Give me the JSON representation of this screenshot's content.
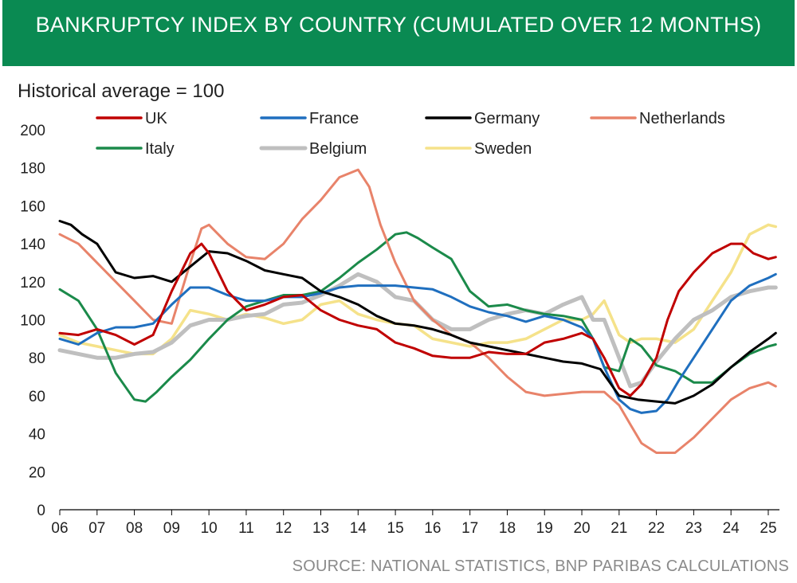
{
  "chart_data": {
    "type": "line",
    "title": "BANKRUPTCY INDEX BY COUNTRY (CUMULATED OVER 12 MONTHS)",
    "ylabel": "Historical average = 100",
    "xlabel": "",
    "ylim": [
      0,
      200
    ],
    "yticks": [
      0,
      20,
      40,
      60,
      80,
      100,
      120,
      140,
      160,
      180,
      200
    ],
    "xlim": [
      2006,
      2025.3
    ],
    "xtick_values": [
      2006,
      2007,
      2008,
      2009,
      2010,
      2011,
      2012,
      2013,
      2014,
      2015,
      2016,
      2017,
      2018,
      2019,
      2020,
      2021,
      2022,
      2023,
      2024,
      2025
    ],
    "xtick_labels": [
      "06",
      "07",
      "08",
      "09",
      "10",
      "11",
      "12",
      "13",
      "14",
      "15",
      "16",
      "17",
      "18",
      "19",
      "20",
      "21",
      "22",
      "23",
      "24",
      "25"
    ],
    "grid": false,
    "legend_position": "top",
    "source": "SOURCE: NATIONAL STATISTICS, BNP PARIBAS CALCULATIONS",
    "series": [
      {
        "name": "UK",
        "color": "#c00000",
        "x": [
          2006.0,
          2006.5,
          2007.0,
          2007.5,
          2008.0,
          2008.5,
          2009.0,
          2009.5,
          2009.8,
          2010.0,
          2010.5,
          2011.0,
          2011.5,
          2012.0,
          2012.5,
          2013.0,
          2013.5,
          2014.0,
          2014.5,
          2015.0,
          2015.5,
          2016.0,
          2016.5,
          2017.0,
          2017.5,
          2018.0,
          2018.5,
          2019.0,
          2019.5,
          2020.0,
          2020.3,
          2020.6,
          2021.0,
          2021.3,
          2021.6,
          2022.0,
          2022.3,
          2022.6,
          2023.0,
          2023.5,
          2024.0,
          2024.3,
          2024.6,
          2025.0,
          2025.2
        ],
        "values": [
          93,
          92,
          95,
          92,
          87,
          92,
          115,
          135,
          140,
          135,
          115,
          105,
          108,
          112,
          113,
          105,
          100,
          97,
          95,
          88,
          85,
          81,
          80,
          80,
          83,
          82,
          82,
          88,
          90,
          93,
          90,
          80,
          64,
          60,
          66,
          80,
          100,
          115,
          125,
          135,
          140,
          140,
          135,
          132,
          133
        ]
      },
      {
        "name": "France",
        "color": "#1f6fbf",
        "x": [
          2006.0,
          2006.5,
          2007.0,
          2007.5,
          2008.0,
          2008.5,
          2009.0,
          2009.5,
          2010.0,
          2010.5,
          2011.0,
          2011.5,
          2012.0,
          2012.5,
          2013.0,
          2013.5,
          2014.0,
          2014.5,
          2015.0,
          2015.5,
          2016.0,
          2016.5,
          2017.0,
          2017.5,
          2018.0,
          2018.5,
          2019.0,
          2019.5,
          2020.0,
          2020.3,
          2020.6,
          2021.0,
          2021.3,
          2021.6,
          2022.0,
          2022.3,
          2022.6,
          2023.0,
          2023.5,
          2024.0,
          2024.5,
          2025.0,
          2025.2
        ],
        "values": [
          90,
          87,
          93,
          96,
          96,
          98,
          108,
          117,
          117,
          113,
          110,
          110,
          112,
          112,
          114,
          117,
          118,
          118,
          118,
          117,
          116,
          112,
          107,
          104,
          102,
          99,
          102,
          100,
          96,
          90,
          75,
          58,
          53,
          51,
          52,
          58,
          68,
          80,
          95,
          110,
          118,
          122,
          124
        ]
      },
      {
        "name": "Germany",
        "color": "#000000",
        "x": [
          2006.0,
          2006.3,
          2006.6,
          2007.0,
          2007.5,
          2008.0,
          2008.5,
          2009.0,
          2009.5,
          2010.0,
          2010.5,
          2011.0,
          2011.5,
          2012.0,
          2012.5,
          2013.0,
          2013.5,
          2014.0,
          2014.5,
          2015.0,
          2015.5,
          2016.0,
          2016.5,
          2017.0,
          2017.5,
          2018.0,
          2018.5,
          2019.0,
          2019.5,
          2020.0,
          2020.5,
          2021.0,
          2021.5,
          2022.0,
          2022.5,
          2023.0,
          2023.5,
          2024.0,
          2024.5,
          2025.0,
          2025.2
        ],
        "values": [
          152,
          150,
          145,
          140,
          125,
          122,
          123,
          120,
          128,
          136,
          135,
          131,
          126,
          124,
          122,
          115,
          112,
          108,
          102,
          98,
          97,
          95,
          92,
          88,
          86,
          84,
          82,
          80,
          78,
          77,
          74,
          60,
          58,
          57,
          56,
          60,
          66,
          75,
          83,
          90,
          93
        ]
      },
      {
        "name": "Netherlands",
        "color": "#e8836a",
        "x": [
          2006.0,
          2006.5,
          2007.0,
          2007.5,
          2008.0,
          2008.5,
          2009.0,
          2009.5,
          2009.8,
          2010.0,
          2010.5,
          2011.0,
          2011.5,
          2012.0,
          2012.5,
          2013.0,
          2013.5,
          2014.0,
          2014.3,
          2014.6,
          2015.0,
          2015.5,
          2016.0,
          2016.5,
          2017.0,
          2017.5,
          2018.0,
          2018.5,
          2019.0,
          2019.5,
          2020.0,
          2020.3,
          2020.6,
          2021.0,
          2021.3,
          2021.6,
          2022.0,
          2022.5,
          2023.0,
          2023.5,
          2024.0,
          2024.5,
          2025.0,
          2025.2
        ],
        "values": [
          145,
          140,
          130,
          120,
          110,
          100,
          98,
          130,
          148,
          150,
          140,
          133,
          132,
          140,
          153,
          163,
          175,
          179,
          170,
          150,
          130,
          110,
          100,
          92,
          88,
          80,
          70,
          62,
          60,
          61,
          62,
          62,
          62,
          55,
          45,
          35,
          30,
          30,
          38,
          48,
          58,
          64,
          67,
          65
        ]
      },
      {
        "name": "Italy",
        "color": "#1b8a4a",
        "x": [
          2006.0,
          2006.5,
          2007.0,
          2007.5,
          2008.0,
          2008.3,
          2008.6,
          2009.0,
          2009.5,
          2010.0,
          2010.5,
          2011.0,
          2011.5,
          2012.0,
          2012.5,
          2013.0,
          2013.5,
          2014.0,
          2014.5,
          2015.0,
          2015.3,
          2015.6,
          2016.0,
          2016.5,
          2017.0,
          2017.5,
          2018.0,
          2018.5,
          2019.0,
          2019.5,
          2020.0,
          2020.3,
          2020.6,
          2021.0,
          2021.3,
          2021.6,
          2022.0,
          2022.5,
          2023.0,
          2023.5,
          2024.0,
          2024.5,
          2025.0,
          2025.2
        ],
        "values": [
          116,
          110,
          95,
          72,
          58,
          57,
          62,
          70,
          79,
          90,
          100,
          107,
          110,
          113,
          113,
          115,
          122,
          130,
          137,
          145,
          146,
          143,
          138,
          132,
          115,
          107,
          108,
          105,
          103,
          102,
          100,
          90,
          75,
          73,
          90,
          86,
          76,
          73,
          67,
          67,
          75,
          82,
          86,
          87
        ]
      },
      {
        "name": "Belgium",
        "color": "#bfbfbf",
        "x": [
          2006.0,
          2006.5,
          2007.0,
          2007.5,
          2008.0,
          2008.5,
          2009.0,
          2009.5,
          2010.0,
          2010.5,
          2011.0,
          2011.5,
          2012.0,
          2012.5,
          2013.0,
          2013.5,
          2014.0,
          2014.5,
          2015.0,
          2015.5,
          2016.0,
          2016.5,
          2017.0,
          2017.5,
          2018.0,
          2018.5,
          2019.0,
          2019.5,
          2020.0,
          2020.3,
          2020.6,
          2021.0,
          2021.3,
          2021.6,
          2022.0,
          2022.5,
          2023.0,
          2023.5,
          2024.0,
          2024.5,
          2025.0,
          2025.2
        ],
        "values": [
          84,
          82,
          80,
          80,
          82,
          83,
          88,
          97,
          100,
          100,
          102,
          103,
          108,
          109,
          113,
          118,
          124,
          120,
          112,
          110,
          100,
          95,
          95,
          100,
          103,
          105,
          103,
          108,
          112,
          100,
          100,
          80,
          65,
          67,
          78,
          90,
          100,
          105,
          112,
          115,
          117,
          117
        ]
      },
      {
        "name": "Sweden",
        "color": "#f5e28a",
        "x": [
          2006.0,
          2006.5,
          2007.0,
          2007.5,
          2008.0,
          2008.5,
          2009.0,
          2009.5,
          2010.0,
          2010.5,
          2011.0,
          2011.5,
          2012.0,
          2012.5,
          2013.0,
          2013.5,
          2014.0,
          2014.5,
          2015.0,
          2015.5,
          2016.0,
          2016.5,
          2017.0,
          2017.5,
          2018.0,
          2018.5,
          2019.0,
          2019.5,
          2020.0,
          2020.3,
          2020.6,
          2021.0,
          2021.3,
          2021.6,
          2022.0,
          2022.5,
          2023.0,
          2023.5,
          2024.0,
          2024.5,
          2025.0,
          2025.2
        ],
        "values": [
          92,
          88,
          86,
          84,
          82,
          82,
          90,
          105,
          103,
          100,
          103,
          101,
          98,
          100,
          108,
          110,
          103,
          100,
          98,
          97,
          90,
          88,
          86,
          88,
          88,
          90,
          95,
          100,
          100,
          103,
          110,
          92,
          88,
          90,
          90,
          88,
          95,
          110,
          125,
          145,
          150,
          149
        ]
      }
    ]
  }
}
